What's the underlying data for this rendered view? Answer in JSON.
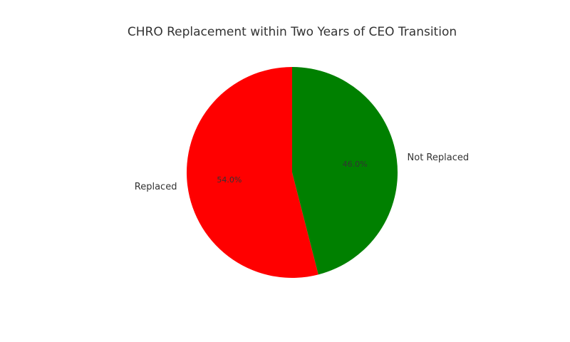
{
  "chart_data": {
    "type": "pie",
    "title": "CHRO Replacement within Two Years of CEO Transition",
    "categories": [
      "Replaced",
      "Not Replaced"
    ],
    "values": [
      54,
      46
    ],
    "value_labels": [
      "54.0%",
      "46.0%"
    ],
    "colors": [
      "red",
      "green"
    ]
  }
}
